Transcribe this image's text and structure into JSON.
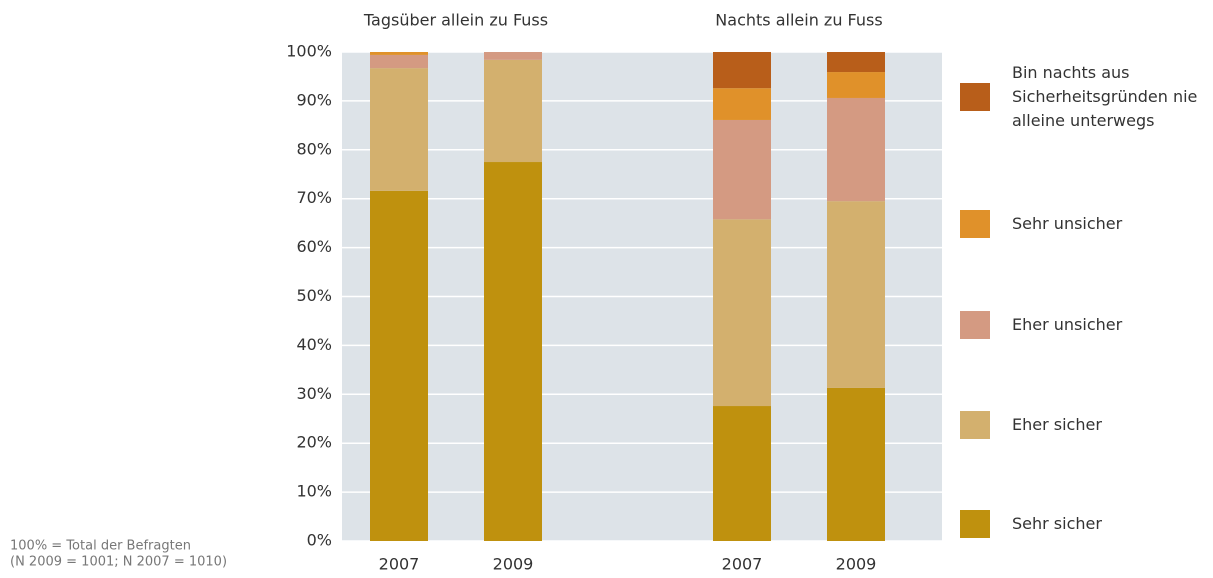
{
  "chart_data": {
    "type": "stacked_bar",
    "groups": [
      "Tagsüber allein zu Fuss",
      "Nachts allein zu Fuss"
    ],
    "categories": [
      "2007",
      "2009",
      "2007",
      "2009"
    ],
    "series": [
      {
        "name": "Sehr sicher",
        "color": "#bf910e",
        "values": [
          71.6,
          77.5,
          27.6,
          31.3
        ]
      },
      {
        "name": "Eher sicher",
        "color": "#d3b06e",
        "values": [
          25.1,
          20.9,
          38.2,
          38.2
        ]
      },
      {
        "name": "Eher unsicher",
        "color": "#d49a82",
        "values": [
          2.7,
          1.6,
          20.3,
          21.1
        ]
      },
      {
        "name": "Sehr unsicher",
        "color": "#e0912a",
        "values": [
          0.6,
          0,
          6.5,
          5.3
        ]
      },
      {
        "name": "Bin nachts aus Sicherheitsgründen nie alleine unterwegs",
        "color": "#b85e1a",
        "values": [
          0,
          0,
          7.4,
          4.1
        ]
      }
    ],
    "ylim": [
      0,
      100
    ],
    "yticks": [
      {
        "value": 0,
        "label": "0%"
      },
      {
        "value": 10,
        "label": "10%"
      },
      {
        "value": 20,
        "label": "20%"
      },
      {
        "value": 30,
        "label": "30%"
      },
      {
        "value": 40,
        "label": "40%"
      },
      {
        "value": 50,
        "label": "50%"
      },
      {
        "value": 60,
        "label": "60%"
      },
      {
        "value": 70,
        "label": "70%"
      },
      {
        "value": 80,
        "label": "80%"
      },
      {
        "value": 90,
        "label": "90%"
      },
      {
        "value": 100,
        "label": "100%"
      }
    ],
    "grid": true,
    "notes": [
      "100% = Total der Befragten",
      "(N 2009 = 1001; N 2007 = 1010)"
    ]
  }
}
